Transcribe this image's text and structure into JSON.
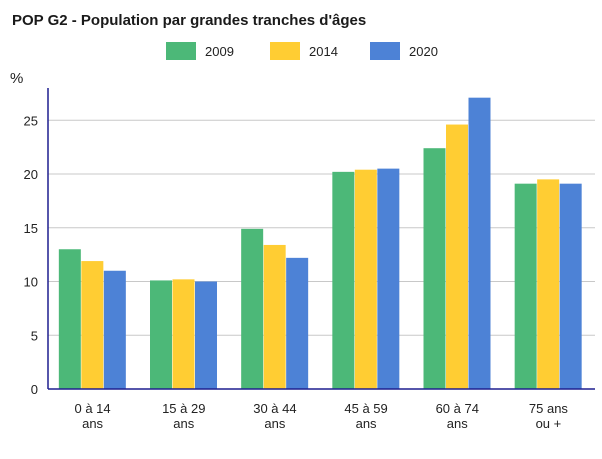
{
  "chart_data": {
    "type": "bar",
    "title": "POP G2 - Population par grandes tranches d'âges",
    "ylabel": "%",
    "xlabel": "",
    "ylim": [
      0,
      28
    ],
    "yticks": [
      0,
      5,
      10,
      15,
      20,
      25
    ],
    "grid": true,
    "legend_position": "top",
    "categories": [
      [
        "0 à 14",
        "ans"
      ],
      [
        "15 à 29",
        "ans"
      ],
      [
        "30 à 44",
        "ans"
      ],
      [
        "45 à 59",
        "ans"
      ],
      [
        "60 à 74",
        "ans"
      ],
      [
        "75 ans",
        "ou +"
      ]
    ],
    "series": [
      {
        "name": "2009",
        "color": "#4cb878",
        "values": [
          13.0,
          10.1,
          14.9,
          20.2,
          22.4,
          19.1
        ]
      },
      {
        "name": "2014",
        "color": "#ffcd33",
        "values": [
          11.9,
          10.2,
          13.4,
          20.4,
          24.6,
          19.5
        ]
      },
      {
        "name": "2020",
        "color": "#4d82d6",
        "values": [
          11.0,
          10.0,
          12.2,
          20.5,
          27.1,
          19.1
        ]
      }
    ]
  }
}
